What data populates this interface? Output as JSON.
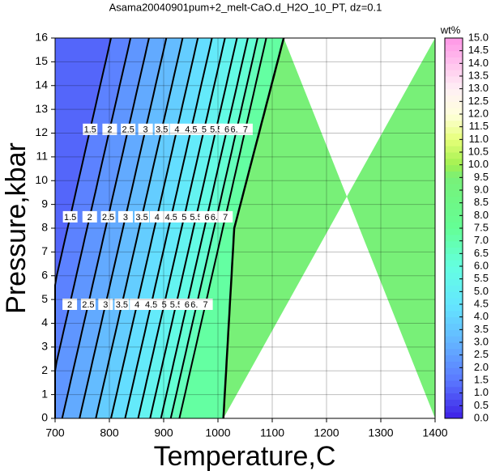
{
  "chart_data": {
    "type": "contour",
    "title": "Asama20040901pum+2_melt-CaO.d_H2O_10_PT, dz=0.1",
    "x_label": "Temperature,C",
    "y_label": "Pressure,kbar",
    "colorbar_label": "wt%",
    "xlim": [
      700,
      1400
    ],
    "xticks": [
      700,
      800,
      900,
      1000,
      1100,
      1200,
      1300,
      1400
    ],
    "ylim": [
      0,
      16
    ],
    "yticks": [
      0,
      1,
      2,
      3,
      4,
      5,
      6,
      7,
      8,
      9,
      10,
      11,
      12,
      13,
      14,
      15,
      16
    ],
    "clim": [
      0,
      15
    ],
    "cticks": [
      {
        "value": 0,
        "label": "0.0"
      },
      {
        "value": 0.5,
        "label": "0.5"
      },
      {
        "value": 1,
        "label": "1.0"
      },
      {
        "value": 1.5,
        "label": "1.5"
      },
      {
        "value": 2,
        "label": "2.0"
      },
      {
        "value": 2.5,
        "label": "2.5"
      },
      {
        "value": 3,
        "label": "3.0"
      },
      {
        "value": 3.5,
        "label": "3.5"
      },
      {
        "value": 4,
        "label": "4.0"
      },
      {
        "value": 4.5,
        "label": "4.5"
      },
      {
        "value": 5,
        "label": "5.0"
      },
      {
        "value": 5.5,
        "label": "5.5"
      },
      {
        "value": 6,
        "label": "6.0"
      },
      {
        "value": 6.5,
        "label": "6.5"
      },
      {
        "value": 7,
        "label": "7.0"
      },
      {
        "value": 7.5,
        "label": "7.5"
      },
      {
        "value": 8,
        "label": "8.0"
      },
      {
        "value": 8.5,
        "label": "8.5"
      },
      {
        "value": 9,
        "label": "9.0"
      },
      {
        "value": 9.5,
        "label": "9.5"
      },
      {
        "value": 10,
        "label": "10.0"
      },
      {
        "value": 10.5,
        "label": "10.5"
      },
      {
        "value": 11,
        "label": "11.0"
      },
      {
        "value": 11.5,
        "label": "11.5"
      },
      {
        "value": 12,
        "label": "12.0"
      },
      {
        "value": 12.5,
        "label": "12.5"
      },
      {
        "value": 13,
        "label": "13.0"
      },
      {
        "value": 13.5,
        "label": "13.5"
      },
      {
        "value": 14,
        "label": "14.0"
      },
      {
        "value": 14.5,
        "label": "14.5"
      },
      {
        "value": 15,
        "label": "15.0"
      }
    ],
    "levels": [
      1.5,
      2,
      2.5,
      3,
      3.5,
      4,
      4.5,
      5,
      5.5,
      6,
      6.5,
      7
    ],
    "colormap": [
      {
        "value": 0,
        "color": "#3c1ee6"
      },
      {
        "value": 1.5,
        "color": "#5a78ff"
      },
      {
        "value": 3,
        "color": "#64b4ff"
      },
      {
        "value": 4.5,
        "color": "#64e6ff"
      },
      {
        "value": 6,
        "color": "#64ffe0"
      },
      {
        "value": 7.5,
        "color": "#64ff96"
      },
      {
        "value": 9.5,
        "color": "#78f078"
      },
      {
        "value": 10,
        "color": "#a0f050"
      },
      {
        "value": 11,
        "color": "#e6ff78"
      },
      {
        "value": 12,
        "color": "#ffffdc"
      },
      {
        "value": 13,
        "color": "#fff0f5"
      },
      {
        "value": 15,
        "color": "#ff96e6"
      }
    ],
    "melt_free_color": "#78f078"
  }
}
